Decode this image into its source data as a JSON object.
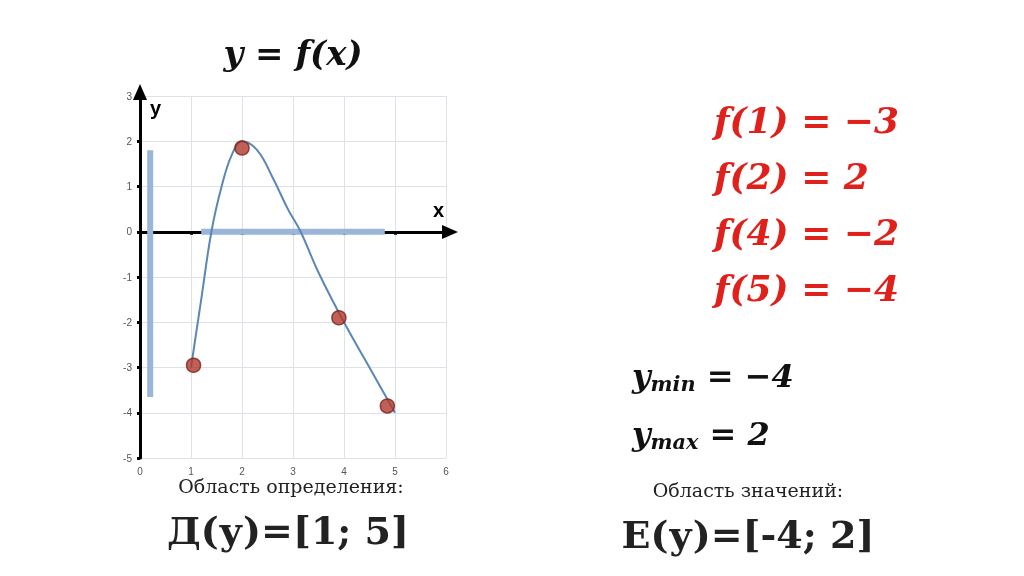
{
  "chart_data": {
    "type": "line",
    "title": "y = f(x)",
    "xlabel": "x",
    "ylabel": "y",
    "xlim": [
      0,
      6
    ],
    "xticks": [
      0,
      1,
      2,
      3,
      4,
      5,
      6
    ],
    "ylim": [
      -5,
      3
    ],
    "yticks": [
      -5,
      -4,
      -3,
      -2,
      -1,
      0,
      1,
      2,
      3
    ],
    "grid": true,
    "line_style": "solid",
    "series": [
      {
        "color": "#5b87b5",
        "x": [
          1,
          1.2,
          1.4,
          1.6,
          1.8,
          2,
          2.3,
          2.6,
          2.9,
          3.15,
          3.5,
          4,
          4.5,
          5
        ],
        "values": [
          -3,
          -1.5,
          0,
          1,
          1.7,
          2,
          1.8,
          1.2,
          0.5,
          0,
          -0.9,
          -2,
          -3,
          -4
        ]
      },
      {
        "type": "line",
        "color": "#9ab5d8",
        "x": [
          0.2,
          0.2
        ],
        "values": [
          -3.65,
          1.8
        ]
      },
      {
        "type": "line",
        "color": "#9ab5d8",
        "x": [
          1.2,
          4.8
        ],
        "values": [
          0,
          0
        ]
      },
      {
        "type": "scatter",
        "marker": "circle",
        "color": "#b03a2e",
        "x": [
          1.05,
          2,
          3.9,
          4.85
        ],
        "values": [
          -2.95,
          1.85,
          -1.9,
          -3.85
        ]
      }
    ],
    "annotations": [
      "f(1) = −3",
      "f(2) = 2",
      "f(4) = −2",
      "f(5) = −4",
      "y$_{min}$ = −4",
      "y$_{max}$ = 2",
      "Область определения:",
      "Д(у)=[1; 5]",
      "Область значений:",
      "Е(у)=[-4; 2]"
    ]
  }
}
